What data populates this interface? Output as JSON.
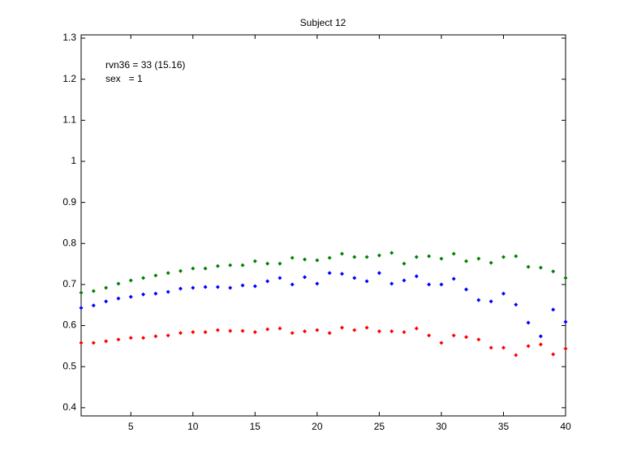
{
  "chart_data": {
    "type": "scatter",
    "title": "Subject 12",
    "annotations": [
      "rvn36 = 33 (15.16)",
      "sex   = 1"
    ],
    "x": [
      1,
      2,
      3,
      4,
      5,
      6,
      7,
      8,
      9,
      10,
      11,
      12,
      13,
      14,
      15,
      16,
      17,
      18,
      19,
      20,
      21,
      22,
      23,
      24,
      25,
      26,
      27,
      28,
      29,
      30,
      31,
      32,
      33,
      34,
      35,
      36,
      37,
      38,
      39,
      40
    ],
    "series": [
      {
        "color": "#008000",
        "values": [
          0.68,
          0.684,
          0.692,
          0.702,
          0.71,
          0.716,
          0.722,
          0.728,
          0.733,
          0.739,
          0.739,
          0.745,
          0.747,
          0.747,
          0.757,
          0.751,
          0.751,
          0.765,
          0.761,
          0.759,
          0.765,
          0.775,
          0.767,
          0.767,
          0.771,
          0.777,
          0.751,
          0.767,
          0.769,
          0.763,
          0.775,
          0.757,
          0.763,
          0.753,
          0.767,
          0.769,
          0.743,
          0.741,
          0.732,
          0.716
        ]
      },
      {
        "color": "#0000ff",
        "values": [
          0.643,
          0.649,
          0.659,
          0.666,
          0.67,
          0.676,
          0.678,
          0.682,
          0.69,
          0.692,
          0.694,
          0.694,
          0.692,
          0.698,
          0.696,
          0.708,
          0.716,
          0.7,
          0.718,
          0.702,
          0.728,
          0.726,
          0.716,
          0.708,
          0.728,
          0.702,
          0.71,
          0.72,
          0.7,
          0.7,
          0.714,
          0.688,
          0.662,
          0.659,
          0.678,
          0.651,
          0.607,
          0.574,
          0.639,
          0.609
        ]
      },
      {
        "color": "#ff0000",
        "values": [
          0.558,
          0.558,
          0.562,
          0.566,
          0.57,
          0.57,
          0.574,
          0.576,
          0.582,
          0.584,
          0.584,
          0.589,
          0.587,
          0.587,
          0.584,
          0.591,
          0.593,
          0.582,
          0.586,
          0.589,
          0.582,
          0.595,
          0.589,
          0.595,
          0.586,
          0.586,
          0.584,
          0.593,
          0.576,
          0.558,
          0.576,
          0.572,
          0.566,
          0.546,
          0.546,
          0.528,
          0.55,
          0.554,
          0.53,
          0.544
        ]
      }
    ],
    "xlim": [
      1,
      40
    ],
    "xticks": [
      5,
      10,
      15,
      20,
      25,
      30,
      35,
      40
    ],
    "ylim": [
      0.38,
      1.308
    ],
    "yticks": [
      0.4,
      0.5,
      0.6,
      0.7,
      0.8,
      0.9,
      1,
      1.1,
      1.2,
      1.3
    ],
    "grid": false
  }
}
